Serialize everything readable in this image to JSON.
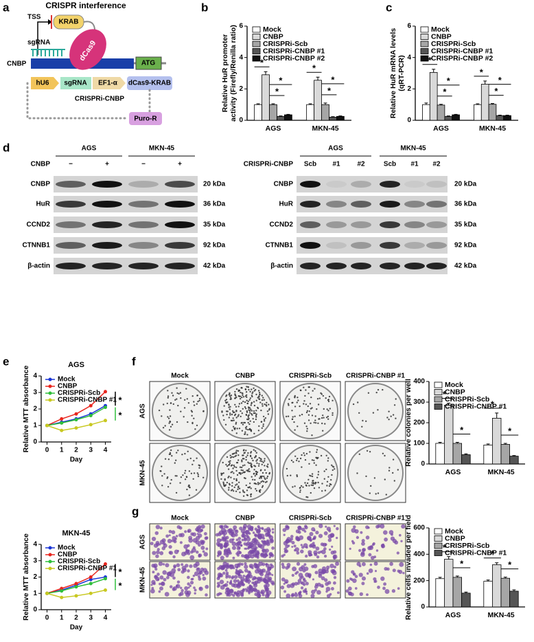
{
  "panel_labels": [
    "a",
    "b",
    "c",
    "d",
    "e",
    "f",
    "g"
  ],
  "diagram": {
    "title": "CRISPR interference",
    "tss": "TSS",
    "krab": "KRAB",
    "sgrna": "sgRNA",
    "dcas9": "dCas9",
    "gene": "CNBP",
    "atg": "ATG",
    "construct": [
      "hU6",
      "sgRNA",
      "EF1-α",
      "dCas9-KRAB"
    ],
    "construct_name": "CRISPRi-CNBP",
    "resistance": "Puro-R"
  },
  "western_left": {
    "groups": [
      "AGS",
      "MKN-45"
    ],
    "treatment_label": "CNBP",
    "lanes": [
      "−",
      "+",
      "−",
      "+"
    ],
    "proteins": [
      "CNBP",
      "HuR",
      "CCND2",
      "CTNNB1",
      "β-actin"
    ],
    "sizes": [
      "20 kDa",
      "36 kDa",
      "35 kDa",
      "92 kDa",
      "42 kDa"
    ]
  },
  "western_right": {
    "groups": [
      "AGS",
      "MKN-45"
    ],
    "treatment_label": "CRISPRi-CNBP",
    "lanes": [
      "Scb",
      "#1",
      "#2",
      "Scb",
      "#1",
      "#2"
    ],
    "proteins": [
      "CNBP",
      "HuR",
      "CCND2",
      "CTNNB1",
      "β-actin"
    ],
    "sizes": [
      "20 kDa",
      "36 kDa",
      "35 kDa",
      "92 kDa",
      "42 kDa"
    ]
  },
  "colony_images": {
    "columns": [
      "Mock",
      "CNBP",
      "CRISPRi-Scb",
      "CRISPRi-CNBP #1"
    ],
    "rows": [
      "AGS",
      "MKN-45"
    ]
  },
  "invasion_images": {
    "columns": [
      "Mock",
      "CNBP",
      "CRISPRi-Scb",
      "CRISPRi-CNBP #1"
    ],
    "rows": [
      "AGS",
      "MKN-45"
    ]
  },
  "chart_data": [
    {
      "type": "bar",
      "ylabel": [
        "Relative HuR promoter",
        "activity (Firefly/Renilla ratio)"
      ],
      "categories": [
        "AGS",
        "MKN-45"
      ],
      "ylim": [
        0,
        6
      ],
      "yticks": [
        0,
        2,
        4,
        6
      ],
      "significance_label": "*",
      "series": [
        {
          "name": "Mock",
          "color": "#ffffff",
          "values": [
            1.0,
            1.0
          ],
          "errors": [
            0.05,
            0.05
          ]
        },
        {
          "name": "CNBP",
          "color": "#d9d9d9",
          "values": [
            2.9,
            2.55
          ],
          "errors": [
            0.2,
            0.2
          ]
        },
        {
          "name": "CRISPRi-Scb",
          "color": "#a6a6a6",
          "values": [
            1.0,
            1.0
          ],
          "errors": [
            0.05,
            0.1
          ]
        },
        {
          "name": "CRISPRi-CNBP #1",
          "color": "#555555",
          "values": [
            0.25,
            0.2
          ],
          "errors": [
            0.03,
            0.03
          ]
        },
        {
          "name": "CRISPRi-CNBP #2",
          "color": "#111111",
          "values": [
            0.35,
            0.25
          ],
          "errors": [
            0.03,
            0.03
          ]
        }
      ]
    },
    {
      "type": "bar",
      "ylabel": [
        "Relative HuR mRNA levels",
        "(qRT-PCR)"
      ],
      "categories": [
        "AGS",
        "MKN-45"
      ],
      "ylim": [
        0,
        6
      ],
      "yticks": [
        0,
        2,
        4,
        6
      ],
      "significance_label": "*",
      "series": [
        {
          "name": "Mock",
          "color": "#ffffff",
          "values": [
            1.0,
            1.0
          ],
          "errors": [
            0.1,
            0.05
          ]
        },
        {
          "name": "CNBP",
          "color": "#d9d9d9",
          "values": [
            3.05,
            2.3
          ],
          "errors": [
            0.2,
            0.2
          ]
        },
        {
          "name": "CRISPRi-Scb",
          "color": "#a6a6a6",
          "values": [
            0.97,
            1.02
          ],
          "errors": [
            0.05,
            0.05
          ]
        },
        {
          "name": "CRISPRi-CNBP #1",
          "color": "#555555",
          "values": [
            0.25,
            0.3
          ],
          "errors": [
            0.03,
            0.03
          ]
        },
        {
          "name": "CRISPRi-CNBP #2",
          "color": "#111111",
          "values": [
            0.35,
            0.3
          ],
          "errors": [
            0.03,
            0.03
          ]
        }
      ]
    },
    {
      "type": "line",
      "title": "AGS",
      "xlabel": "Day",
      "ylabel": "Relative MTT absorbance",
      "x": [
        0,
        1,
        2,
        3,
        4
      ],
      "xlim": [
        -0.4,
        4.4
      ],
      "xticks": [
        0,
        1,
        2,
        3,
        4
      ],
      "ylim": [
        0,
        4
      ],
      "yticks": [
        0,
        1,
        2,
        3,
        4
      ],
      "significance_label": "*",
      "series": [
        {
          "name": "Mock",
          "color": "#1a35d6",
          "values": [
            1,
            1.2,
            1.4,
            1.7,
            2.2
          ]
        },
        {
          "name": "CNBP",
          "color": "#e8261e",
          "values": [
            1,
            1.4,
            1.7,
            2.2,
            3.05
          ]
        },
        {
          "name": "CRISPRi-Scb",
          "color": "#2fbf3a",
          "values": [
            1,
            1.15,
            1.35,
            1.6,
            2.1
          ]
        },
        {
          "name": "CRISPRi-CNBP #1",
          "color": "#c8c820",
          "values": [
            1,
            0.7,
            0.85,
            1.05,
            1.3
          ]
        }
      ]
    },
    {
      "type": "line",
      "title": "MKN-45",
      "xlabel": "Day",
      "ylabel": "Relative MTT absorbance",
      "x": [
        0,
        1,
        2,
        3,
        4
      ],
      "xlim": [
        -0.4,
        4.4
      ],
      "xticks": [
        0,
        1,
        2,
        3,
        4
      ],
      "ylim": [
        0,
        4
      ],
      "yticks": [
        0,
        1,
        2,
        3,
        4
      ],
      "significance_label": "*",
      "series": [
        {
          "name": "Mock",
          "color": "#1a35d6",
          "values": [
            1,
            1.2,
            1.5,
            1.85,
            2.0
          ]
        },
        {
          "name": "CNBP",
          "color": "#e8261e",
          "values": [
            1,
            1.3,
            1.6,
            2.0,
            2.8
          ]
        },
        {
          "name": "CRISPRi-Scb",
          "color": "#2fbf3a",
          "values": [
            1,
            1.15,
            1.4,
            1.6,
            1.9
          ]
        },
        {
          "name": "CRISPRi-CNBP #1",
          "color": "#c8c820",
          "values": [
            1,
            0.75,
            0.85,
            1.0,
            1.2
          ]
        }
      ]
    },
    {
      "type": "bar",
      "ylabel": [
        "Relative colonies per well"
      ],
      "categories": [
        "AGS",
        "MKN-45"
      ],
      "ylim": [
        0,
        400
      ],
      "yticks": [
        0,
        100,
        200,
        300,
        400
      ],
      "significance_label": "*",
      "series": [
        {
          "name": "Mock",
          "color": "#ffffff",
          "values": [
            100,
            92
          ],
          "errors": [
            5,
            5
          ]
        },
        {
          "name": "CNBP",
          "color": "#d9d9d9",
          "values": [
            285,
            222
          ],
          "errors": [
            10,
            25
          ]
        },
        {
          "name": "CRISPRi-Scb",
          "color": "#a6a6a6",
          "values": [
            100,
            95
          ],
          "errors": [
            5,
            5
          ]
        },
        {
          "name": "CRISPRi-CNBP #1",
          "color": "#555555",
          "values": [
            45,
            38
          ],
          "errors": [
            4,
            3
          ]
        }
      ]
    },
    {
      "type": "bar",
      "ylabel": [
        "Relative cells invaded per field"
      ],
      "categories": [
        "AGS",
        "MKN-45"
      ],
      "ylim": [
        0,
        600
      ],
      "yticks": [
        0,
        200,
        400,
        600
      ],
      "significance_label": "*",
      "series": [
        {
          "name": "Mock",
          "color": "#ffffff",
          "values": [
            215,
            195
          ],
          "errors": [
            10,
            10
          ]
        },
        {
          "name": "CNBP",
          "color": "#d9d9d9",
          "values": [
            362,
            320
          ],
          "errors": [
            20,
            15
          ]
        },
        {
          "name": "CRISPRi-Scb",
          "color": "#a6a6a6",
          "values": [
            225,
            218
          ],
          "errors": [
            10,
            8
          ]
        },
        {
          "name": "CRISPRi-CNBP #1",
          "color": "#555555",
          "values": [
            105,
            120
          ],
          "errors": [
            8,
            10
          ]
        }
      ]
    }
  ]
}
